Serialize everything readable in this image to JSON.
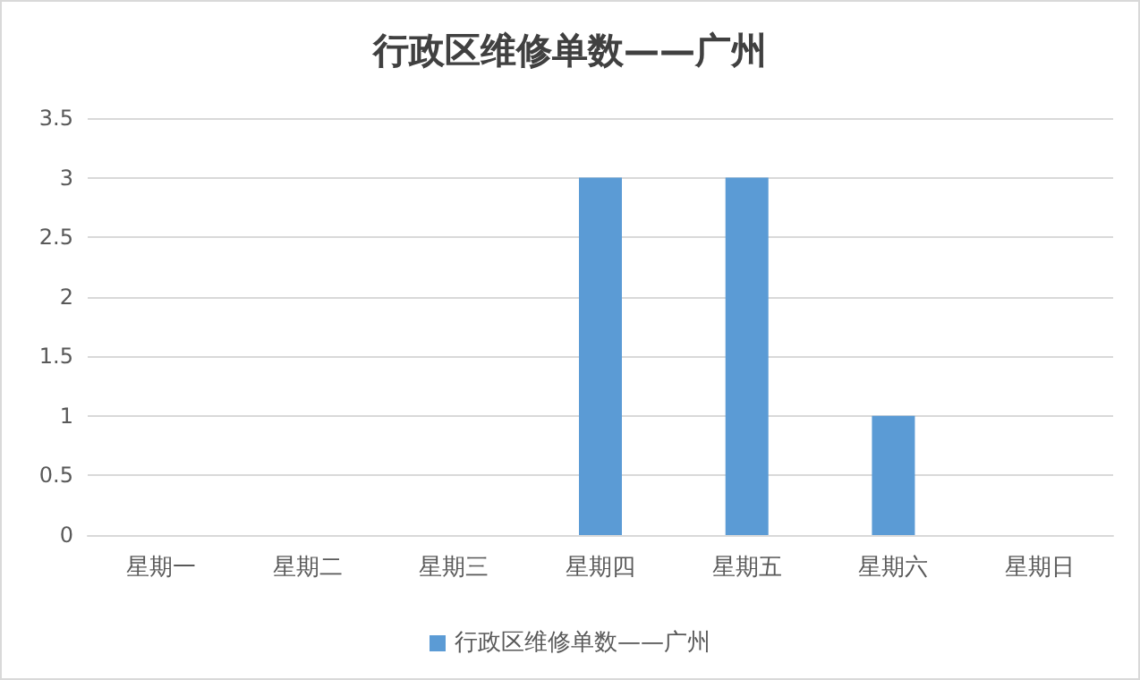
{
  "chart_data": {
    "type": "bar",
    "title": "行政区维修单数——广州",
    "categories": [
      "星期一",
      "星期二",
      "星期三",
      "星期四",
      "星期五",
      "星期六",
      "星期日"
    ],
    "series": [
      {
        "name": "行政区维修单数——广州",
        "color": "#5b9bd5",
        "values": [
          0,
          0,
          0,
          3,
          3,
          1,
          0
        ]
      }
    ],
    "ylim": [
      0,
      3.5
    ],
    "yticks": [
      0,
      0.5,
      1,
      1.5,
      2,
      2.5,
      3,
      3.5
    ],
    "grid": "y",
    "legend": "bottom"
  }
}
